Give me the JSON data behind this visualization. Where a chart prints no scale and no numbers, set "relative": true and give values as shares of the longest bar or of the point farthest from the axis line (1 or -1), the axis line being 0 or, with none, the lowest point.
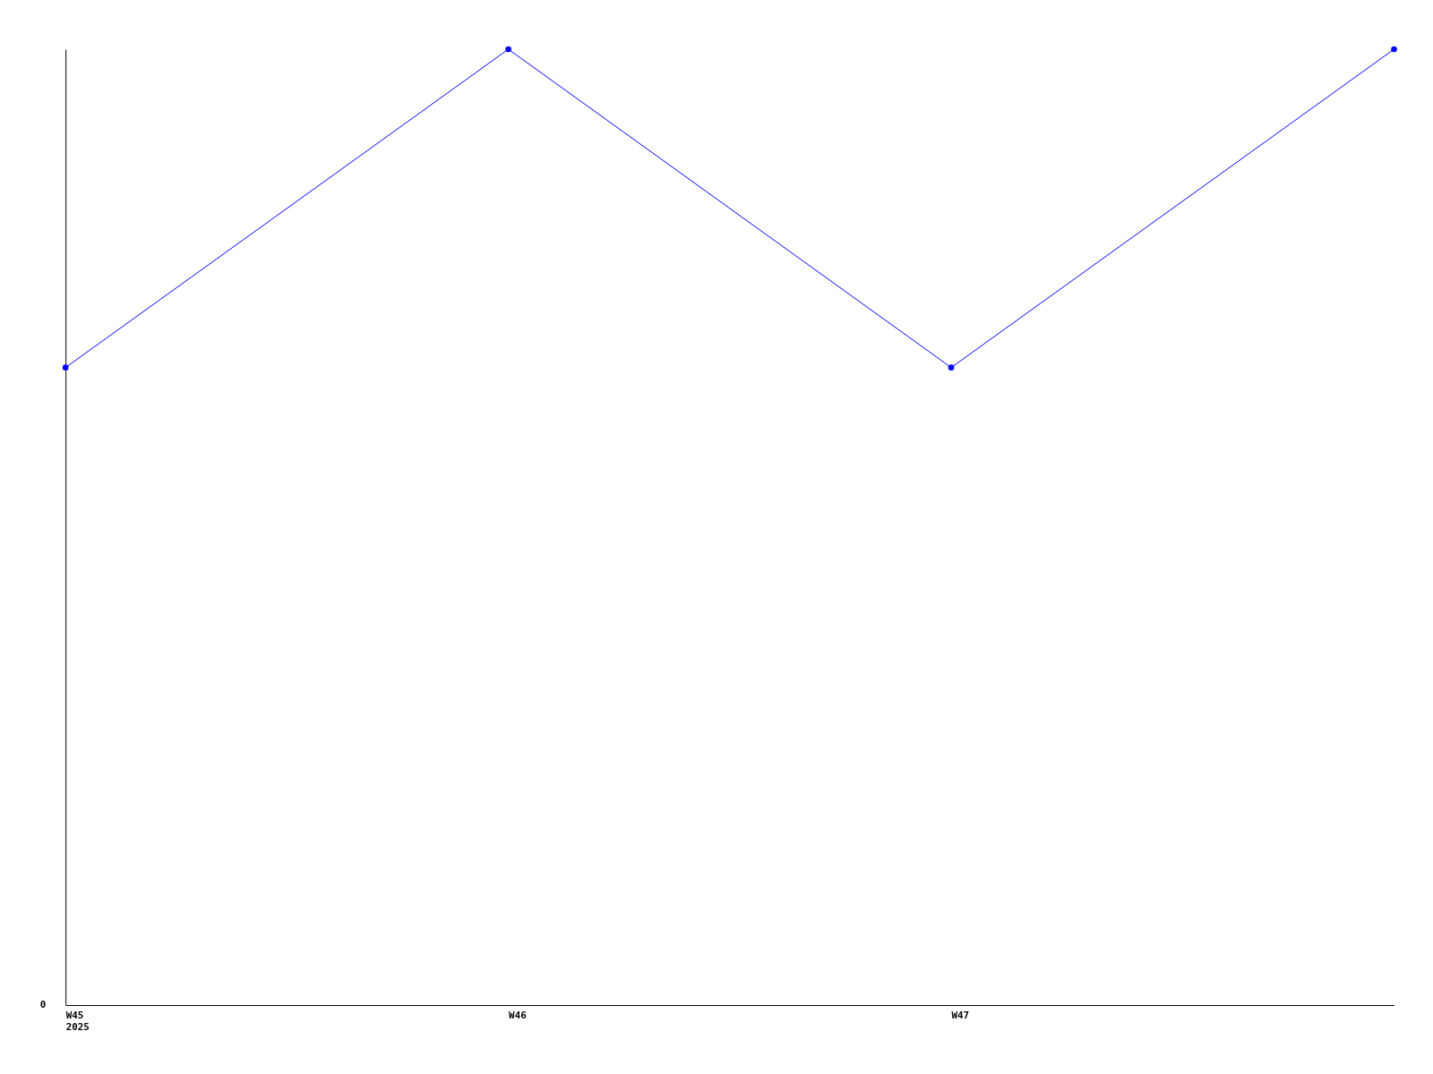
{
  "chart_data": {
    "type": "line",
    "relative": true,
    "marker": "circle",
    "line_style": "solid",
    "categories": [
      "W45\n2025",
      "W46",
      "W47",
      null
    ],
    "series": [
      {
        "color": "#0000ff",
        "values": [
          0.667,
          1,
          0.667,
          1
        ]
      }
    ],
    "annotations": [
      "0"
    ]
  }
}
